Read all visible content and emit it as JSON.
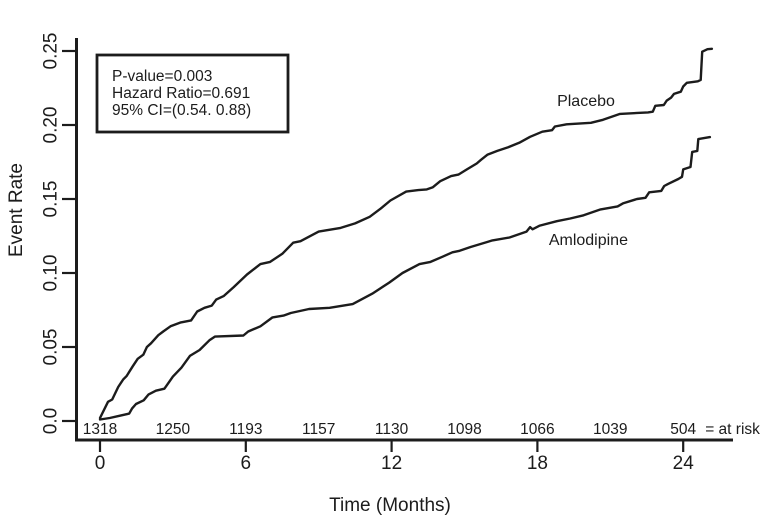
{
  "chart_data": {
    "type": "line",
    "title": "",
    "xlabel": "Time (Months)",
    "ylabel": "Event Rate",
    "xlim": [
      0,
      26.6
    ],
    "ylim": [
      0,
      0.263
    ],
    "grid": false,
    "legend_position": "inline-labels",
    "line_color": "#1c1c1c",
    "background_color": "#ffffff",
    "x_ticks": [
      0,
      6,
      12,
      18,
      24
    ],
    "y_ticks": [
      {
        "value": 0.0,
        "label": "0.0"
      },
      {
        "value": 0.05,
        "label": "0.05"
      },
      {
        "value": 0.1,
        "label": "0.10"
      },
      {
        "value": 0.15,
        "label": "0.15"
      },
      {
        "value": 0.2,
        "label": "0.20"
      },
      {
        "value": 0.25,
        "label": "0.25"
      }
    ],
    "annotation_lines": [
      "P-value=0.003",
      "Hazard Ratio=0.691",
      "95% CI=(0.54. 0.88)"
    ],
    "at_risk": {
      "months": [
        0,
        3,
        6,
        9,
        12,
        15,
        18,
        21,
        24
      ],
      "counts": [
        "1318",
        "1250",
        "1193",
        "1157",
        "1130",
        "1098",
        "1066",
        "1039",
        "504"
      ],
      "suffix": "= at risk"
    },
    "series": [
      {
        "name": "Placebo",
        "label": {
          "month": 20.0,
          "rate": 0.213
        },
        "points": [
          [
            0,
            0.002
          ],
          [
            0.33,
            0.013
          ],
          [
            0.5,
            0.0145
          ],
          [
            0.75,
            0.023
          ],
          [
            0.95,
            0.028
          ],
          [
            1.1,
            0.0305
          ],
          [
            1.35,
            0.037
          ],
          [
            1.55,
            0.042
          ],
          [
            1.78,
            0.0448
          ],
          [
            1.93,
            0.05
          ],
          [
            2.1,
            0.0525
          ],
          [
            2.4,
            0.058
          ],
          [
            2.6,
            0.0605
          ],
          [
            2.9,
            0.064
          ],
          [
            3.3,
            0.0665
          ],
          [
            3.75,
            0.068
          ],
          [
            4.0,
            0.074
          ],
          [
            4.3,
            0.0765
          ],
          [
            4.6,
            0.078
          ],
          [
            4.78,
            0.082
          ],
          [
            5.1,
            0.0845
          ],
          [
            5.5,
            0.0905
          ],
          [
            6.05,
            0.099
          ],
          [
            6.6,
            0.106
          ],
          [
            7.0,
            0.1075
          ],
          [
            7.5,
            0.113
          ],
          [
            7.95,
            0.1205
          ],
          [
            8.25,
            0.1215
          ],
          [
            9.0,
            0.128
          ],
          [
            9.9,
            0.1305
          ],
          [
            10.5,
            0.1335
          ],
          [
            11.1,
            0.138
          ],
          [
            11.55,
            0.1435
          ],
          [
            11.95,
            0.149
          ],
          [
            12.6,
            0.155
          ],
          [
            13.1,
            0.156
          ],
          [
            13.45,
            0.1565
          ],
          [
            13.7,
            0.158
          ],
          [
            14.0,
            0.162
          ],
          [
            14.45,
            0.1655
          ],
          [
            14.75,
            0.1665
          ],
          [
            15.1,
            0.17
          ],
          [
            15.5,
            0.174
          ],
          [
            15.68,
            0.1765
          ],
          [
            15.95,
            0.18
          ],
          [
            16.35,
            0.1825
          ],
          [
            16.8,
            0.185
          ],
          [
            17.25,
            0.188
          ],
          [
            17.7,
            0.192
          ],
          [
            18.2,
            0.1955
          ],
          [
            18.6,
            0.1965
          ],
          [
            18.72,
            0.199
          ],
          [
            19.2,
            0.2005
          ],
          [
            20.2,
            0.2015
          ],
          [
            20.7,
            0.2035
          ],
          [
            21.4,
            0.2075
          ],
          [
            22.55,
            0.2085
          ],
          [
            22.75,
            0.209
          ],
          [
            22.85,
            0.213
          ],
          [
            23.2,
            0.2135
          ],
          [
            23.32,
            0.2165
          ],
          [
            23.5,
            0.2185
          ],
          [
            23.62,
            0.221
          ],
          [
            23.9,
            0.2225
          ],
          [
            24.0,
            0.226
          ],
          [
            24.15,
            0.2285
          ],
          [
            24.6,
            0.2295
          ],
          [
            24.72,
            0.2305
          ],
          [
            24.78,
            0.2495
          ],
          [
            25.0,
            0.2512
          ],
          [
            25.18,
            0.2515
          ]
        ]
      },
      {
        "name": "Amlodipine",
        "label": {
          "month": 20.1,
          "rate": 0.119
        },
        "points": [
          [
            0,
            0.001
          ],
          [
            0.4,
            0.002
          ],
          [
            0.8,
            0.0035
          ],
          [
            1.2,
            0.005
          ],
          [
            1.32,
            0.0085
          ],
          [
            1.48,
            0.0115
          ],
          [
            1.8,
            0.014
          ],
          [
            2.0,
            0.018
          ],
          [
            2.3,
            0.0205
          ],
          [
            2.65,
            0.0218
          ],
          [
            3.0,
            0.03
          ],
          [
            3.35,
            0.036
          ],
          [
            3.7,
            0.044
          ],
          [
            4.1,
            0.048
          ],
          [
            4.5,
            0.0545
          ],
          [
            4.73,
            0.057
          ],
          [
            5.9,
            0.0578
          ],
          [
            6.1,
            0.0605
          ],
          [
            6.6,
            0.064
          ],
          [
            7.1,
            0.07
          ],
          [
            7.55,
            0.0712
          ],
          [
            7.85,
            0.073
          ],
          [
            8.6,
            0.0757
          ],
          [
            9.45,
            0.0765
          ],
          [
            10.4,
            0.079
          ],
          [
            11.2,
            0.086
          ],
          [
            11.9,
            0.0935
          ],
          [
            12.45,
            0.1
          ],
          [
            13.15,
            0.106
          ],
          [
            13.6,
            0.1075
          ],
          [
            14.1,
            0.111
          ],
          [
            14.5,
            0.114
          ],
          [
            14.8,
            0.115
          ],
          [
            15.25,
            0.1176
          ],
          [
            15.95,
            0.121
          ],
          [
            16.15,
            0.122
          ],
          [
            16.85,
            0.124
          ],
          [
            17.55,
            0.128
          ],
          [
            17.7,
            0.131
          ],
          [
            17.8,
            0.1295
          ],
          [
            18.1,
            0.132
          ],
          [
            18.8,
            0.135
          ],
          [
            19.35,
            0.1368
          ],
          [
            19.9,
            0.139
          ],
          [
            20.6,
            0.143
          ],
          [
            21.3,
            0.145
          ],
          [
            21.52,
            0.147
          ],
          [
            22.1,
            0.15
          ],
          [
            22.45,
            0.1508
          ],
          [
            22.6,
            0.1545
          ],
          [
            23.1,
            0.1555
          ],
          [
            23.22,
            0.1588
          ],
          [
            23.38,
            0.1602
          ],
          [
            23.8,
            0.1635
          ],
          [
            23.95,
            0.165
          ],
          [
            24.0,
            0.17
          ],
          [
            24.3,
            0.1716
          ],
          [
            24.37,
            0.1818
          ],
          [
            24.58,
            0.1825
          ],
          [
            24.62,
            0.1905
          ],
          [
            25.1,
            0.1918
          ]
        ]
      }
    ]
  }
}
